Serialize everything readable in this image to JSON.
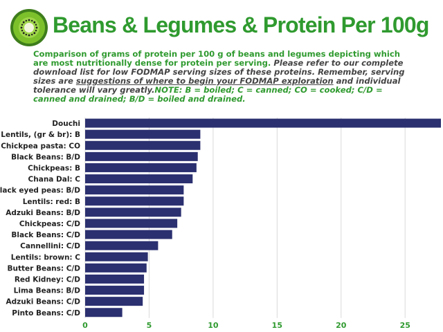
{
  "header": {
    "title": "Beans & Legumes & Protein Per 100g",
    "logo_icon": "kiwi-icon"
  },
  "description": {
    "part1": "Comparison of grams of protein per 100 g of beans and legumes depicting which are most nutritionally dense for protein per serving.",
    "part2": " Please refer to our complete download list for low FODMAP serving sizes of these proteins. Remember, serving sizes are ",
    "underlined": "suggestions of where to begin your FODMAP exploration",
    "part3": " and individual tolerance will vary greatly.",
    "note": "NOTE: B = boiled; C = canned; CO = cooked; C/D = canned and drained; B/D = boiled and drained."
  },
  "colors": {
    "accent": "#2f9a2f",
    "bar": "#2b3070",
    "grid": "#d9d9d9"
  },
  "chart_data": {
    "type": "bar",
    "orientation": "horizontal",
    "categories": [
      "Douchi",
      "Lentils, (gr & br): B",
      "Chickpea pasta: CO",
      "Black Beans: B/D",
      "Chickpeas: B",
      "Chana Dal: C",
      "Black eyed peas: B/D",
      "Lentils: red: B",
      "Adzuki Beans: B/D",
      "Chickpeas: C/D",
      "Black Beans: C/D",
      "Cannellini: C/D",
      "Lentils: brown: C",
      "Butter Beans: C/D",
      "Red Kidney: C/D",
      "Lima Beans: B/D",
      "Adzuki Beans: C/D",
      "Pinto Beans: C/D"
    ],
    "values": [
      27.8,
      9.0,
      9.0,
      8.8,
      8.7,
      8.4,
      7.7,
      7.7,
      7.5,
      7.2,
      6.8,
      5.7,
      4.9,
      4.8,
      4.6,
      4.6,
      4.5,
      2.9
    ],
    "xlim": [
      0,
      27.8
    ],
    "xticks": [
      0,
      5,
      10,
      15,
      20,
      25
    ],
    "xlabel": "",
    "ylabel": "",
    "grid": true
  }
}
